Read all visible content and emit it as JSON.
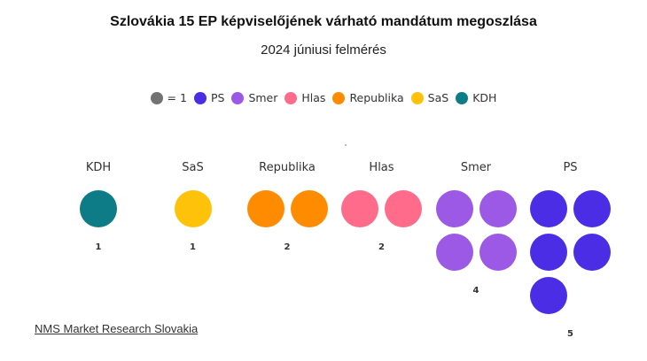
{
  "chart_data": {
    "type": "parliament-dots",
    "title": "Szlovákia 15 EP képviselőjének várható mandátum megoszlása",
    "subtitle": "2024 júniusi felmérés",
    "legend": {
      "unit_label": "= 1",
      "unit_color": "#737373",
      "placement": "top-center"
    },
    "categories": [
      "KDH",
      "SaS",
      "Republika",
      "Hlas",
      "Smer",
      "PS"
    ],
    "series": [
      {
        "name": "KDH",
        "value": 1,
        "color": "#0e7c86"
      },
      {
        "name": "SaS",
        "value": 1,
        "color": "#ffc20a"
      },
      {
        "name": "Republika",
        "value": 2,
        "color": "#ff8c00"
      },
      {
        "name": "Hlas",
        "value": 2,
        "color": "#ff6b8a"
      },
      {
        "name": "Smer",
        "value": 4,
        "color": "#9b59e6"
      },
      {
        "name": "PS",
        "value": 5,
        "color": "#4b2de6"
      }
    ],
    "legend_order": [
      "PS",
      "Smer",
      "Hlas",
      "Republika",
      "SaS",
      "KDH"
    ]
  },
  "source": "NMS Market Research Slovakia"
}
